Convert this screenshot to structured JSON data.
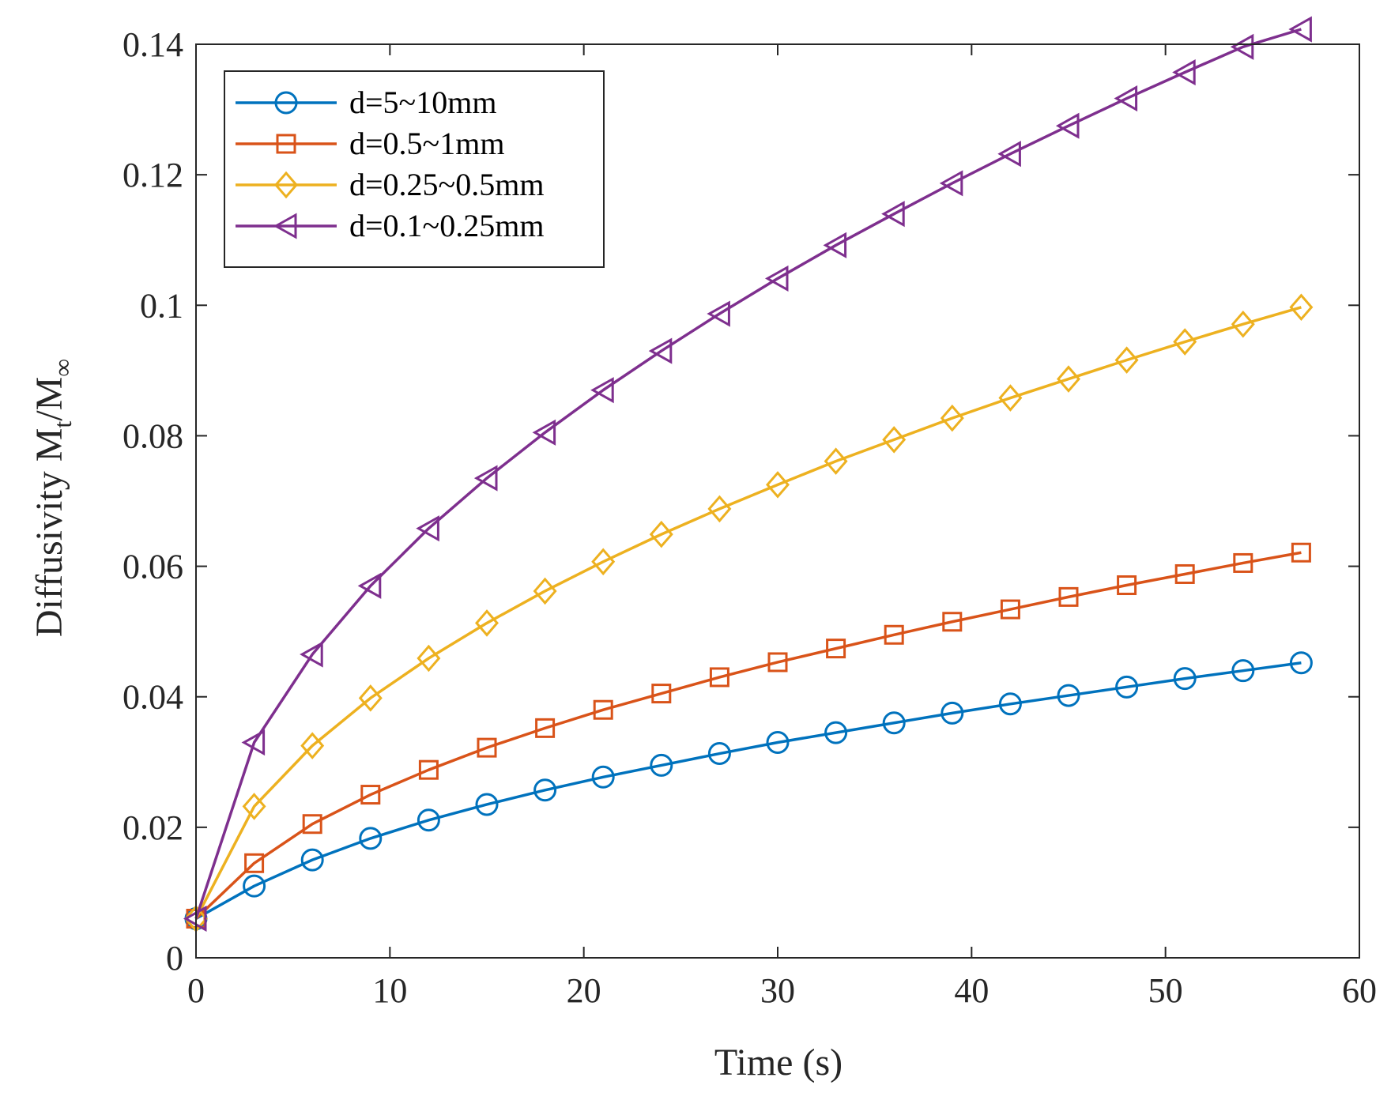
{
  "chart_data": {
    "type": "line",
    "title": "",
    "xlabel": "Time (s)",
    "ylabel": {
      "prefix": "Diffusivity M",
      "sub1": "t",
      "mid": "/M",
      "sub2": "∞"
    },
    "xlim": [
      0,
      60
    ],
    "ylim": [
      0,
      0.14
    ],
    "xticks": [
      0,
      10,
      20,
      30,
      40,
      50,
      60
    ],
    "yticks": [
      0,
      0.02,
      0.04,
      0.06,
      0.08,
      0.1,
      0.12,
      0.14
    ],
    "xtick_labels": [
      "0",
      "10",
      "20",
      "30",
      "40",
      "50",
      "60"
    ],
    "ytick_labels": [
      "0",
      "0.02",
      "0.04",
      "0.06",
      "0.08",
      "0.1",
      "0.12",
      "0.14"
    ],
    "grid": false,
    "legend_position": "top-left",
    "x": [
      0,
      3,
      6,
      9,
      12,
      15,
      18,
      21,
      24,
      27,
      30,
      33,
      36,
      39,
      42,
      45,
      48,
      51,
      54,
      57
    ],
    "series": [
      {
        "name": "d=5~10mm",
        "color": "#0072BD",
        "marker": "circle",
        "values": [
          0.006,
          0.011,
          0.015,
          0.0183,
          0.0211,
          0.0235,
          0.0257,
          0.0277,
          0.0295,
          0.0313,
          0.033,
          0.0345,
          0.036,
          0.0375,
          0.0389,
          0.0402,
          0.0415,
          0.0428,
          0.044,
          0.0452
        ]
      },
      {
        "name": "d=0.5~1mm",
        "color": "#D95319",
        "marker": "square",
        "values": [
          0.006,
          0.0145,
          0.0205,
          0.025,
          0.0288,
          0.0322,
          0.0352,
          0.038,
          0.0405,
          0.043,
          0.0453,
          0.0474,
          0.0495,
          0.0515,
          0.0534,
          0.0553,
          0.0571,
          0.0588,
          0.0605,
          0.0621
        ]
      },
      {
        "name": "d=0.25~0.5mm",
        "color": "#EDB120",
        "marker": "diamond",
        "values": [
          0.006,
          0.0232,
          0.0325,
          0.0398,
          0.0459,
          0.0513,
          0.0562,
          0.0607,
          0.0649,
          0.0688,
          0.0725,
          0.0761,
          0.0794,
          0.0827,
          0.0858,
          0.0887,
          0.0916,
          0.0944,
          0.0971,
          0.0997
        ]
      },
      {
        "name": "d=0.1~0.25mm",
        "color": "#7E2F8E",
        "marker": "triangle-left",
        "values": [
          0.006,
          0.033,
          0.0465,
          0.057,
          0.0658,
          0.0735,
          0.0805,
          0.087,
          0.093,
          0.0987,
          0.1041,
          0.1092,
          0.114,
          0.1187,
          0.1232,
          0.1275,
          0.1317,
          0.1357,
          0.1396,
          0.1423
        ]
      }
    ]
  }
}
